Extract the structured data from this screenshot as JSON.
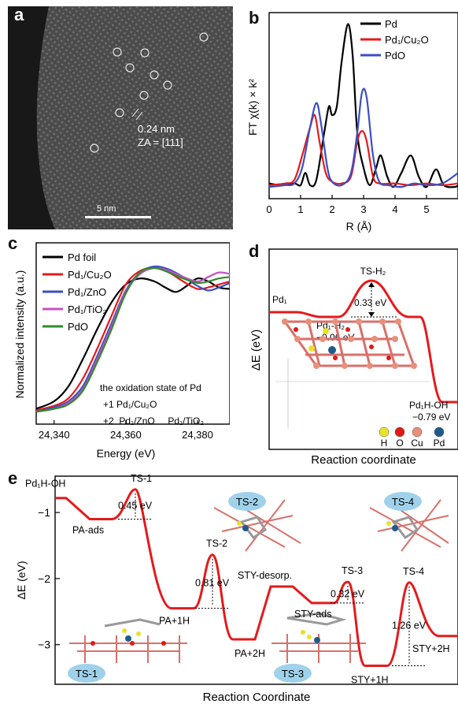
{
  "panel_labels": {
    "a": "a",
    "b": "b",
    "c": "c",
    "d": "d",
    "e": "e"
  },
  "panel_a": {
    "annotation_lines": [
      "0.24 nm",
      "ZA = [111]"
    ],
    "scalebar_label": "5 nm",
    "colors": {
      "background": "#3a3a3a",
      "edge": "#1a1a1a",
      "circle": "#e6e6e6"
    }
  },
  "chart_data": [
    {
      "panel": "b",
      "type": "line",
      "title": "",
      "xlabel": "R (Å)",
      "ylabel": "FT χ(k) × k²",
      "xlim": [
        0,
        6
      ],
      "x_ticks": [
        "0",
        "1",
        "2",
        "3",
        "4",
        "5"
      ],
      "legend": "top-right",
      "series": [
        {
          "name": "Pd",
          "color": "#000000",
          "points": [
            [
              0,
              0.06
            ],
            [
              0.4,
              0.05
            ],
            [
              0.8,
              0.06
            ],
            [
              1.0,
              0.05
            ],
            [
              1.15,
              0.12
            ],
            [
              1.3,
              0.05
            ],
            [
              1.5,
              0.08
            ],
            [
              1.75,
              0.35
            ],
            [
              1.9,
              0.5
            ],
            [
              2.0,
              0.45
            ],
            [
              2.15,
              0.5
            ],
            [
              2.3,
              0.75
            ],
            [
              2.5,
              0.97
            ],
            [
              2.65,
              0.8
            ],
            [
              2.8,
              0.35
            ],
            [
              3.0,
              0.15
            ],
            [
              3.2,
              0.05
            ],
            [
              3.4,
              0.15
            ],
            [
              3.55,
              0.22
            ],
            [
              3.75,
              0.1
            ],
            [
              3.95,
              0.04
            ],
            [
              4.2,
              0.12
            ],
            [
              4.5,
              0.22
            ],
            [
              4.75,
              0.1
            ],
            [
              5.0,
              0.04
            ],
            [
              5.3,
              0.14
            ],
            [
              5.55,
              0.05
            ],
            [
              5.9,
              0.04
            ],
            [
              6.0,
              0.05
            ]
          ]
        },
        {
          "name": "Pd₁/Cu₂O",
          "color": "#e41a1c",
          "points": [
            [
              0,
              0.05
            ],
            [
              0.5,
              0.06
            ],
            [
              0.8,
              0.08
            ],
            [
              1.05,
              0.22
            ],
            [
              1.3,
              0.38
            ],
            [
              1.45,
              0.45
            ],
            [
              1.6,
              0.3
            ],
            [
              1.8,
              0.12
            ],
            [
              2.0,
              0.07
            ],
            [
              2.3,
              0.06
            ],
            [
              2.6,
              0.1
            ],
            [
              2.8,
              0.3
            ],
            [
              2.95,
              0.36
            ],
            [
              3.1,
              0.3
            ],
            [
              3.3,
              0.1
            ],
            [
              3.5,
              0.06
            ],
            [
              4.0,
              0.06
            ],
            [
              4.5,
              0.05
            ],
            [
              5.0,
              0.06
            ],
            [
              5.5,
              0.05
            ],
            [
              6.0,
              0.06
            ]
          ]
        },
        {
          "name": "PdO",
          "color": "#3a4fc4",
          "points": [
            [
              0,
              0.04
            ],
            [
              0.5,
              0.05
            ],
            [
              0.8,
              0.06
            ],
            [
              1.05,
              0.15
            ],
            [
              1.3,
              0.38
            ],
            [
              1.5,
              0.52
            ],
            [
              1.65,
              0.4
            ],
            [
              1.85,
              0.15
            ],
            [
              2.0,
              0.07
            ],
            [
              2.3,
              0.05
            ],
            [
              2.6,
              0.12
            ],
            [
              2.8,
              0.35
            ],
            [
              2.95,
              0.58
            ],
            [
              3.1,
              0.55
            ],
            [
              3.3,
              0.22
            ],
            [
              3.5,
              0.07
            ],
            [
              3.8,
              0.05
            ],
            [
              4.2,
              0.04
            ],
            [
              4.6,
              0.06
            ],
            [
              5.0,
              0.05
            ],
            [
              5.5,
              0.06
            ],
            [
              6.0,
              0.12
            ]
          ]
        }
      ]
    },
    {
      "panel": "c",
      "type": "line",
      "title": "",
      "xlabel": "Energy (eV)",
      "ylabel": "Normalized intensity (a.u.)",
      "xlim": [
        24335,
        24389
      ],
      "x_ticks": [
        "24,340",
        "24,360",
        "24,380"
      ],
      "x_tick_values": [
        24340,
        24360,
        24380
      ],
      "legend": "top-left",
      "annotations": [
        "the oxidation state of Pd",
        "+1  Pd₁/Cu₂O",
        "+2  Pd₁/ZnO     Pd₁/TiO₂"
      ],
      "series": [
        {
          "name": "Pd foil",
          "color": "#000000",
          "points": [
            [
              24335,
              0.05
            ],
            [
              24340,
              0.1
            ],
            [
              24344,
              0.2
            ],
            [
              24348,
              0.38
            ],
            [
              24352,
              0.58
            ],
            [
              24356,
              0.76
            ],
            [
              24360,
              0.88
            ],
            [
              24364,
              0.92
            ],
            [
              24368,
              0.9
            ],
            [
              24371,
              0.86
            ],
            [
              24374,
              0.83
            ],
            [
              24377,
              0.87
            ],
            [
              24380,
              0.92
            ],
            [
              24383,
              0.9
            ],
            [
              24386,
              0.86
            ],
            [
              24389,
              0.85
            ]
          ]
        },
        {
          "name": "Pd₁/Cu₂O",
          "color": "#e41a1c",
          "points": [
            [
              24335,
              0.04
            ],
            [
              24340,
              0.07
            ],
            [
              24344,
              0.12
            ],
            [
              24348,
              0.25
            ],
            [
              24352,
              0.45
            ],
            [
              24356,
              0.67
            ],
            [
              24360,
              0.88
            ],
            [
              24364,
              0.97
            ],
            [
              24368,
              0.99
            ],
            [
              24372,
              0.96
            ],
            [
              24376,
              0.9
            ],
            [
              24380,
              0.85
            ],
            [
              24383,
              0.86
            ],
            [
              24386,
              0.88
            ],
            [
              24389,
              0.9
            ]
          ]
        },
        {
          "name": "Pd₁/ZnO",
          "color": "#3a4fc4",
          "points": [
            [
              24335,
              0.03
            ],
            [
              24340,
              0.06
            ],
            [
              24344,
              0.1
            ],
            [
              24348,
              0.2
            ],
            [
              24352,
              0.4
            ],
            [
              24356,
              0.62
            ],
            [
              24360,
              0.84
            ],
            [
              24364,
              0.96
            ],
            [
              24368,
              1.0
            ],
            [
              24372,
              0.98
            ],
            [
              24376,
              0.93
            ],
            [
              24380,
              0.87
            ],
            [
              24383,
              0.84
            ],
            [
              24386,
              0.86
            ],
            [
              24389,
              0.89
            ]
          ]
        },
        {
          "name": "Pd₁/TiO₂",
          "color": "#c552c0",
          "points": [
            [
              24335,
              0.03
            ],
            [
              24340,
              0.05
            ],
            [
              24344,
              0.09
            ],
            [
              24348,
              0.18
            ],
            [
              24352,
              0.38
            ],
            [
              24356,
              0.6
            ],
            [
              24360,
              0.83
            ],
            [
              24364,
              0.95
            ],
            [
              24368,
              0.99
            ],
            [
              24372,
              0.97
            ],
            [
              24376,
              0.93
            ],
            [
              24380,
              0.9
            ],
            [
              24383,
              0.93
            ],
            [
              24386,
              0.96
            ],
            [
              24389,
              0.95
            ]
          ]
        },
        {
          "name": "PdO",
          "color": "#2e8b2e",
          "points": [
            [
              24335,
              0.03
            ],
            [
              24340,
              0.05
            ],
            [
              24344,
              0.08
            ],
            [
              24348,
              0.17
            ],
            [
              24352,
              0.36
            ],
            [
              24356,
              0.58
            ],
            [
              24360,
              0.82
            ],
            [
              24364,
              0.96
            ],
            [
              24368,
              0.99
            ],
            [
              24372,
              0.96
            ],
            [
              24376,
              0.92
            ],
            [
              24380,
              0.89
            ],
            [
              24383,
              0.9
            ],
            [
              24386,
              0.92
            ],
            [
              24389,
              0.93
            ]
          ]
        }
      ]
    },
    {
      "panel": "d",
      "type": "line",
      "title": "",
      "xlabel": "Reaction coordinate",
      "ylabel": "ΔE (eV)",
      "states": [
        {
          "label": "Pd₁",
          "energy": 0.0
        },
        {
          "label": "Pd₁-H₂",
          "energy": -0.06,
          "value_label": "−0.06 eV"
        },
        {
          "label": "TS-H₂",
          "energy": 0.27,
          "barrier_label": "0.33 eV"
        },
        {
          "label": "Pd₁H-OH",
          "energy": -0.79,
          "value_label": "−0.79 eV"
        }
      ],
      "atom_legend": [
        {
          "symbol": "H",
          "color": "#e8e22a"
        },
        {
          "symbol": "O",
          "color": "#e01818"
        },
        {
          "symbol": "Cu",
          "color": "#e8907a"
        },
        {
          "symbol": "Pd",
          "color": "#1d5c8a"
        }
      ]
    },
    {
      "panel": "e",
      "type": "line",
      "title": "",
      "xlabel": "Reaction Coordinate",
      "ylabel": "ΔE (eV)",
      "ylim": [
        -3.6,
        -0.45
      ],
      "y_ticks": [
        -1,
        -2,
        -3
      ],
      "y_tick_labels": [
        "−1",
        "−2",
        "−3"
      ],
      "states": [
        {
          "label": "Pd₁H-OH",
          "energy": -0.78
        },
        {
          "label": "PA-ads",
          "energy": -1.1
        },
        {
          "label": "TS-1",
          "energy": -0.65,
          "barrier_label": "0.45 eV"
        },
        {
          "label": "PA+1H",
          "energy": -2.45
        },
        {
          "label": "TS-2",
          "energy": -1.64,
          "barrier_label": "0.81 eV"
        },
        {
          "label": "PA+2H",
          "energy": -2.92
        },
        {
          "label": "STY-desorp.",
          "energy": -2.12
        },
        {
          "label": "STY-ads",
          "energy": -2.37
        },
        {
          "label": "TS-3",
          "energy": -2.05,
          "barrier_label": "0.32 eV"
        },
        {
          "label": "STY+1H",
          "energy": -3.32
        },
        {
          "label": "TS-4",
          "energy": -2.06,
          "barrier_label": "1.26 eV"
        },
        {
          "label": "STY+2H",
          "energy": -2.87
        }
      ],
      "structure_tags": [
        "TS-2",
        "TS-4",
        "TS-1",
        "TS-3"
      ]
    }
  ]
}
